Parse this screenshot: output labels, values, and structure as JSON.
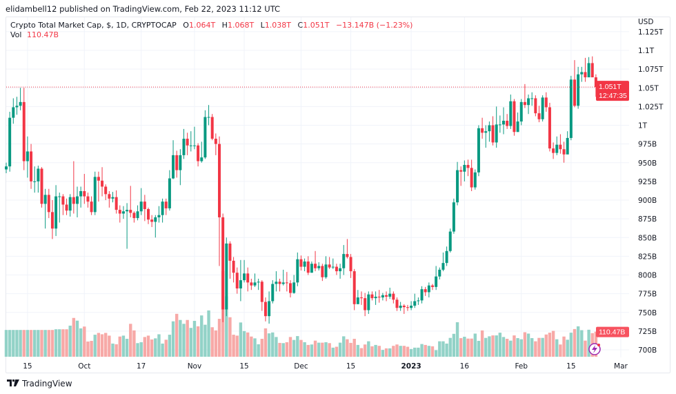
{
  "header": {
    "published": "elidambell12 published on TradingView.com, Feb 22, 2023 11:12 UTC",
    "symbol": "Crypto Total Market Cap, $, 1D, CRYPTOCAP",
    "o_label": "O",
    "o_value": "1.064T",
    "h_label": "H",
    "h_value": "1.068T",
    "l_label": "L",
    "l_value": "1.038T",
    "c_label": "C",
    "c_value": "1.051T",
    "change": "−13.147B (−1.23%)",
    "vol_label": "Vol",
    "vol_value": "110.47B"
  },
  "price_axis": {
    "currency": "USD",
    "ticks": [
      {
        "label": "1.125T",
        "value": 1125
      },
      {
        "label": "1.1T",
        "value": 1100
      },
      {
        "label": "1.075T",
        "value": 1075
      },
      {
        "label": "1.05T",
        "value": 1050
      },
      {
        "label": "1.025T",
        "value": 1025
      },
      {
        "label": "1T",
        "value": 1000
      },
      {
        "label": "975B",
        "value": 975
      },
      {
        "label": "950B",
        "value": 950
      },
      {
        "label": "925B",
        "value": 925
      },
      {
        "label": "900B",
        "value": 900
      },
      {
        "label": "875B",
        "value": 875
      },
      {
        "label": "850B",
        "value": 850
      },
      {
        "label": "825B",
        "value": 825
      },
      {
        "label": "800B",
        "value": 800
      },
      {
        "label": "775B",
        "value": 775
      },
      {
        "label": "750B",
        "value": 750
      },
      {
        "label": "725B",
        "value": 725
      },
      {
        "label": "700B",
        "value": 700
      }
    ],
    "last_price_label": "1.051T",
    "last_price_value": 1051,
    "countdown": "12:47:35",
    "volume_label": "110.47B"
  },
  "footer": {
    "brand": "TradingView"
  },
  "icons": {
    "alert": "lightning-icon",
    "logo": "tradingview-logo-icon"
  },
  "colors": {
    "up": "#089981",
    "down": "#f23645",
    "vol_up": "#92d2c7",
    "vol_down": "#f7a9a7",
    "price_line": "#f23645",
    "alert": "#9c27b0"
  },
  "chart_data": {
    "type": "candlestick",
    "interval": "1D",
    "unit": "B USD",
    "x_end": "2023-02-22",
    "ylim": [
      690,
      1130
    ],
    "grid": true,
    "x_ticks": [
      {
        "label": "15",
        "date": "2022-09-15"
      },
      {
        "label": "Oct",
        "date": "2022-10-01"
      },
      {
        "label": "17",
        "date": "2022-10-17"
      },
      {
        "label": "Nov",
        "date": "2022-11-01"
      },
      {
        "label": "15",
        "date": "2022-11-15"
      },
      {
        "label": "Dec",
        "date": "2022-12-01"
      },
      {
        "label": "15",
        "date": "2022-12-15"
      },
      {
        "label": "2023",
        "date": "2023-01-01",
        "bold": true
      },
      {
        "label": "16",
        "date": "2023-01-16"
      },
      {
        "label": "Feb",
        "date": "2023-02-01"
      },
      {
        "label": "15",
        "date": "2023-02-15"
      },
      {
        "label": "Mar",
        "date": "2023-03-01"
      }
    ],
    "open": [
      941,
      945,
      1010,
      1024,
      1026,
      1031,
      952,
      965,
      925,
      925,
      942,
      895,
      907,
      884,
      862,
      905,
      905,
      894,
      886,
      904,
      895,
      905,
      912,
      905,
      898,
      884,
      931,
      926,
      918,
      908,
      902,
      904,
      887,
      882,
      885,
      887,
      883,
      876,
      885,
      898,
      888,
      874,
      871,
      877,
      880,
      898,
      889,
      929,
      960,
      940,
      960,
      982,
      973,
      973,
      973,
      952,
      957,
      1011,
      1011,
      982,
      975,
      877,
      754,
      842,
      819,
      803,
      782,
      793,
      802,
      790,
      786,
      790,
      791,
      764,
      745,
      765,
      788,
      791,
      788,
      790,
      789,
      776,
      790,
      821,
      811,
      818,
      803,
      815,
      809,
      812,
      797,
      814,
      810,
      811,
      805,
      809,
      828,
      824,
      805,
      761,
      770,
      769,
      753,
      774,
      769,
      771,
      770,
      773,
      771,
      775,
      767,
      756,
      759,
      757,
      756,
      759,
      765,
      766,
      781,
      777,
      786,
      784,
      798,
      807,
      816,
      832,
      858,
      897,
      940,
      938,
      947,
      943,
      917,
      937,
      996,
      990,
      992,
      1000,
      977,
      1001,
      1001,
      1006,
      999,
      1032,
      991,
      1005,
      1031,
      1027,
      1036,
      1036,
      1016,
      1008,
      1037,
      1024,
      969,
      963,
      974,
      968,
      961,
      983,
      1061,
      1026,
      1068,
      1071,
      1064,
      1083,
      1064
    ],
    "high": [
      950,
      1018,
      1036,
      1038,
      1050,
      1050,
      985,
      975,
      945,
      946,
      944,
      915,
      915,
      900,
      920,
      910,
      908,
      902,
      908,
      952,
      918,
      918,
      935,
      910,
      905,
      938,
      938,
      944,
      921,
      912,
      911,
      913,
      893,
      892,
      896,
      919,
      885,
      893,
      916,
      907,
      890,
      880,
      880,
      892,
      902,
      902,
      940,
      980,
      966,
      968,
      995,
      990,
      992,
      998,
      976,
      978,
      1020,
      1027,
      1015,
      989,
      985,
      882,
      850,
      845,
      824,
      810,
      820,
      820,
      810,
      795,
      802,
      795,
      793,
      770,
      778,
      793,
      805,
      795,
      807,
      804,
      793,
      800,
      830,
      826,
      822,
      825,
      818,
      832,
      817,
      815,
      825,
      824,
      822,
      815,
      815,
      840,
      848,
      828,
      808,
      780,
      778,
      776,
      778,
      778,
      778,
      780,
      776,
      778,
      783,
      778,
      770,
      764,
      761,
      760,
      765,
      775,
      770,
      785,
      784,
      790,
      788,
      812,
      810,
      830,
      838,
      862,
      902,
      951,
      945,
      953,
      954,
      954,
      941,
      1000,
      1010,
      1000,
      1005,
      1012,
      1025,
      1013,
      1024,
      1015,
      1041,
      1035,
      1017,
      1035,
      1055,
      1041,
      1044,
      1040,
      1026,
      1040,
      1044,
      1030,
      977,
      985,
      988,
      978,
      992,
      1066,
      1087,
      1078,
      1078,
      1090,
      1091,
      1092,
      1068
    ],
    "low": [
      936,
      938,
      1002,
      1014,
      1020,
      940,
      930,
      915,
      910,
      910,
      890,
      862,
      876,
      848,
      852,
      870,
      880,
      880,
      878,
      882,
      877,
      890,
      895,
      890,
      880,
      880,
      898,
      905,
      900,
      890,
      897,
      882,
      870,
      875,
      835,
      877,
      870,
      873,
      880,
      872,
      868,
      864,
      850,
      870,
      870,
      880,
      886,
      928,
      930,
      920,
      955,
      960,
      965,
      968,
      945,
      950,
      955,
      1000,
      980,
      960,
      812,
      737,
      745,
      795,
      790,
      775,
      765,
      790,
      778,
      780,
      784,
      780,
      752,
      738,
      735,
      762,
      778,
      778,
      786,
      778,
      770,
      775,
      785,
      806,
      805,
      800,
      803,
      805,
      806,
      792,
      795,
      808,
      808,
      800,
      795,
      800,
      822,
      796,
      753,
      763,
      760,
      745,
      748,
      766,
      760,
      763,
      766,
      765,
      768,
      762,
      752,
      752,
      748,
      752,
      753,
      756,
      760,
      762,
      772,
      770,
      780,
      780,
      794,
      805,
      812,
      830,
      855,
      893,
      919,
      925,
      932,
      912,
      914,
      932,
      982,
      970,
      978,
      973,
      970,
      990,
      988,
      995,
      995,
      986,
      991,
      1000,
      1023,
      1015,
      1026,
      1012,
      1004,
      1005,
      1018,
      965,
      955,
      960,
      962,
      950,
      965,
      980,
      1024,
      1022,
      1058,
      1058,
      1068,
      1067,
      1038
    ],
    "close": [
      945,
      1010,
      1024,
      1026,
      1031,
      952,
      965,
      925,
      925,
      942,
      895,
      907,
      884,
      862,
      905,
      905,
      894,
      886,
      904,
      895,
      905,
      912,
      905,
      898,
      884,
      931,
      926,
      918,
      908,
      902,
      904,
      887,
      882,
      885,
      887,
      883,
      876,
      885,
      898,
      888,
      874,
      871,
      877,
      880,
      898,
      889,
      929,
      960,
      940,
      960,
      982,
      973,
      973,
      973,
      952,
      957,
      1011,
      1011,
      982,
      975,
      877,
      754,
      842,
      819,
      803,
      782,
      793,
      802,
      790,
      786,
      790,
      791,
      764,
      745,
      765,
      788,
      791,
      788,
      790,
      789,
      776,
      790,
      821,
      811,
      818,
      803,
      815,
      809,
      812,
      797,
      814,
      810,
      811,
      805,
      809,
      828,
      824,
      805,
      761,
      770,
      769,
      753,
      774,
      769,
      771,
      770,
      773,
      771,
      775,
      767,
      756,
      759,
      757,
      756,
      759,
      765,
      766,
      781,
      777,
      786,
      784,
      798,
      807,
      816,
      832,
      858,
      897,
      940,
      938,
      947,
      943,
      917,
      937,
      996,
      990,
      992,
      1000,
      977,
      1001,
      1001,
      1006,
      999,
      1032,
      991,
      1005,
      1031,
      1027,
      1036,
      1036,
      1016,
      1008,
      1037,
      1024,
      969,
      963,
      974,
      968,
      961,
      983,
      1061,
      1026,
      1068,
      1071,
      1064,
      1083,
      1064,
      1051
    ],
    "volume": [
      118,
      118,
      118,
      118,
      118,
      118,
      118,
      118,
      118,
      118,
      118,
      118,
      118,
      118,
      121,
      121,
      121,
      121,
      137,
      171,
      159,
      125,
      133,
      67,
      70,
      97,
      105,
      99,
      105,
      93,
      58,
      55,
      89,
      93,
      79,
      145,
      116,
      60,
      64,
      87,
      93,
      76,
      81,
      99,
      58,
      75,
      97,
      156,
      189,
      162,
      145,
      162,
      127,
      158,
      134,
      182,
      141,
      204,
      130,
      116,
      167,
      378,
      266,
      174,
      97,
      93,
      151,
      113,
      107,
      89,
      81,
      55,
      79,
      125,
      103,
      107,
      87,
      61,
      60,
      64,
      87,
      74,
      91,
      74,
      64,
      52,
      54,
      71,
      62,
      62,
      64,
      60,
      40,
      44,
      62,
      90,
      77,
      61,
      79,
      52,
      38,
      54,
      68,
      46,
      52,
      48,
      30,
      37,
      37,
      48,
      54,
      48,
      48,
      44,
      34,
      40,
      40,
      56,
      52,
      48,
      46,
      29,
      68,
      68,
      58,
      83,
      101,
      152,
      82,
      88,
      80,
      80,
      102,
      70,
      116,
      83,
      90,
      94,
      94,
      106,
      87,
      79,
      71,
      94,
      82,
      77,
      108,
      102,
      82,
      68,
      83,
      83,
      98,
      106,
      114,
      77,
      54,
      89,
      75,
      106,
      122,
      134,
      117,
      71,
      119,
      104,
      110.47
    ]
  }
}
